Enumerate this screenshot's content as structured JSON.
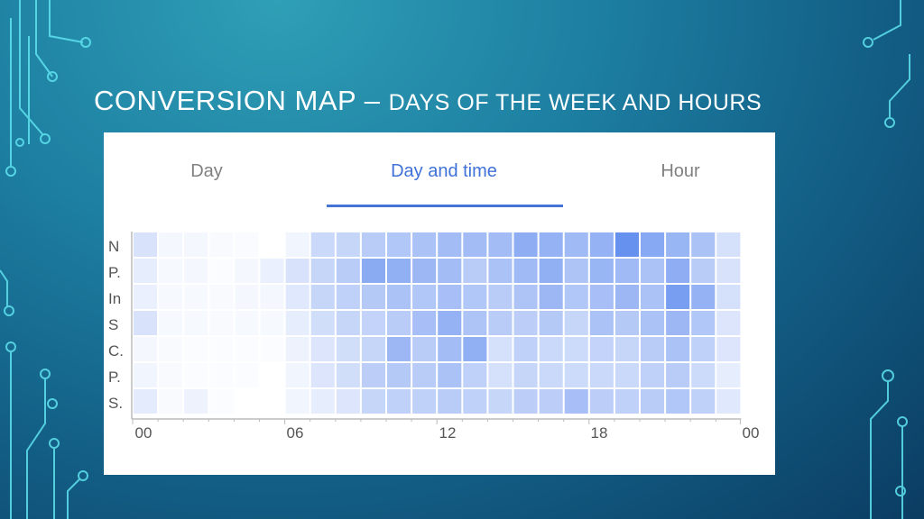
{
  "slide": {
    "title_main": "CONVERSION MAP – ",
    "title_sub": "DAYS OF THE WEEK AND HOURS"
  },
  "tabs": [
    {
      "label": "Day",
      "active": false
    },
    {
      "label": "Day and time",
      "active": true
    },
    {
      "label": "Hour",
      "active": false
    }
  ],
  "colors": {
    "accent": "#4674d6",
    "cell_low": "#ffffff",
    "cell_high": "#4e7fec",
    "background": "#1d7fa2"
  },
  "icons": [
    "circuit-decoration-icon"
  ],
  "chart_data": {
    "type": "heatmap",
    "rows": [
      "N",
      "P.",
      "In",
      "S",
      "C.",
      "P.",
      "S."
    ],
    "x_tick_labels": [
      "00",
      "06",
      "12",
      "18",
      "00"
    ],
    "columns": 24,
    "intensity_scale": [
      0,
      1
    ],
    "values": [
      [
        0.22,
        0.06,
        0.06,
        0.04,
        0.03,
        0.0,
        0.08,
        0.3,
        0.32,
        0.4,
        0.44,
        0.48,
        0.52,
        0.52,
        0.52,
        0.64,
        0.6,
        0.54,
        0.6,
        0.86,
        0.68,
        0.58,
        0.48,
        0.24
      ],
      [
        0.14,
        0.05,
        0.06,
        0.02,
        0.06,
        0.12,
        0.22,
        0.32,
        0.4,
        0.66,
        0.62,
        0.56,
        0.52,
        0.4,
        0.48,
        0.54,
        0.62,
        0.46,
        0.58,
        0.54,
        0.48,
        0.64,
        0.4,
        0.22
      ],
      [
        0.12,
        0.05,
        0.05,
        0.04,
        0.06,
        0.06,
        0.18,
        0.32,
        0.36,
        0.42,
        0.48,
        0.44,
        0.5,
        0.44,
        0.4,
        0.46,
        0.56,
        0.44,
        0.5,
        0.56,
        0.48,
        0.76,
        0.6,
        0.24
      ],
      [
        0.22,
        0.05,
        0.05,
        0.04,
        0.05,
        0.05,
        0.14,
        0.26,
        0.32,
        0.34,
        0.4,
        0.5,
        0.6,
        0.46,
        0.4,
        0.38,
        0.42,
        0.32,
        0.48,
        0.42,
        0.48,
        0.56,
        0.44,
        0.2
      ],
      [
        0.06,
        0.04,
        0.02,
        0.02,
        0.02,
        0.02,
        0.1,
        0.2,
        0.26,
        0.32,
        0.56,
        0.4,
        0.52,
        0.62,
        0.24,
        0.36,
        0.3,
        0.28,
        0.34,
        0.32,
        0.4,
        0.48,
        0.36,
        0.2
      ],
      [
        0.08,
        0.04,
        0.02,
        0.02,
        0.02,
        0.0,
        0.08,
        0.2,
        0.26,
        0.38,
        0.42,
        0.4,
        0.48,
        0.36,
        0.24,
        0.32,
        0.3,
        0.28,
        0.3,
        0.3,
        0.36,
        0.4,
        0.28,
        0.14
      ],
      [
        0.16,
        0.04,
        0.1,
        0.02,
        0.0,
        0.0,
        0.08,
        0.14,
        0.2,
        0.32,
        0.36,
        0.36,
        0.4,
        0.36,
        0.32,
        0.38,
        0.38,
        0.5,
        0.38,
        0.36,
        0.4,
        0.44,
        0.36,
        0.18
      ]
    ]
  }
}
